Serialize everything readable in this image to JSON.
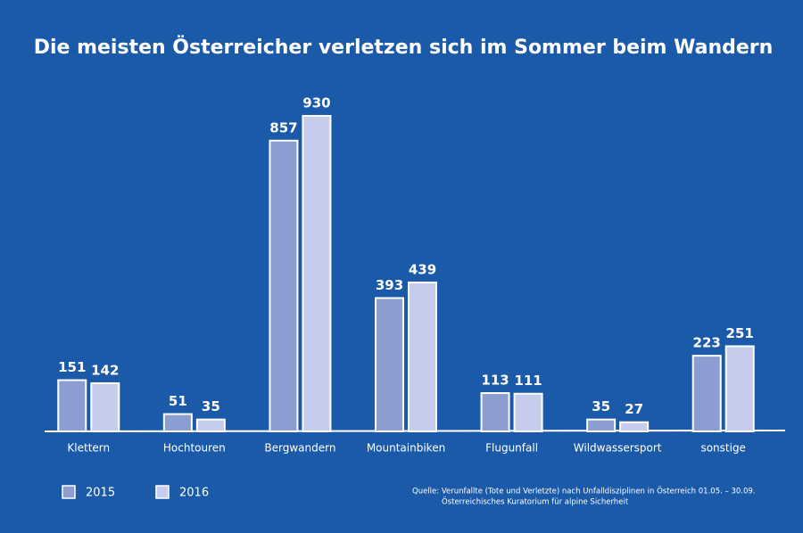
{
  "chart_data": {
    "type": "bar",
    "title": "Die meisten Österreicher verletzen sich im Sommer beim Wandern",
    "categories": [
      "Klettern",
      "Hochtouren",
      "Bergwandern",
      "Mountainbiken",
      "Flugunfall",
      "Wildwassersport",
      "sonstige"
    ],
    "series": [
      {
        "name": "2015",
        "color": "#8c9dd2",
        "values": [
          151,
          51,
          857,
          393,
          113,
          35,
          223
        ]
      },
      {
        "name": "2016",
        "color": "#c6cced",
        "values": [
          142,
          35,
          930,
          439,
          111,
          27,
          251
        ]
      }
    ],
    "source": [
      "Quelle: Verunfallte (Tote und Verletzte) nach Unfalldisziplinen in Österreich 01.05. – 30.09.",
      "Österreichisches Kuratorium für alpine Sicherheit"
    ]
  }
}
